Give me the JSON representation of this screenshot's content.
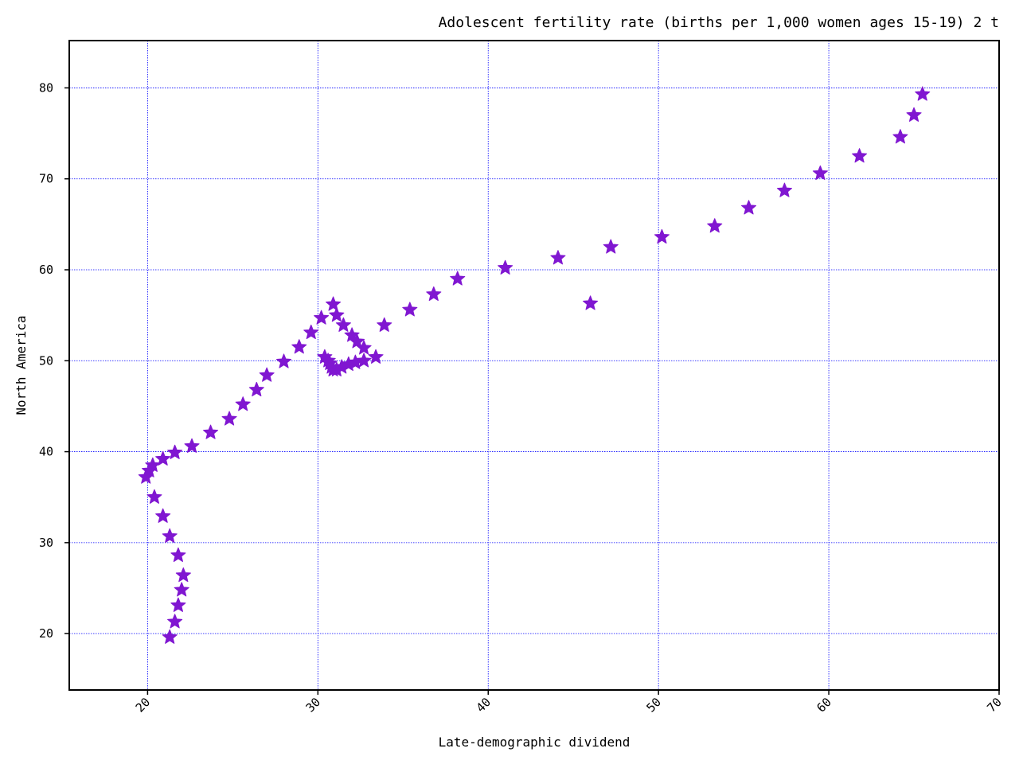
{
  "chart_data": {
    "type": "scatter",
    "title": "Adolescent fertility rate (births per 1,000 women ages 15-19) 2 t",
    "xlabel": "Late-demographic dividend",
    "ylabel": "North America",
    "xlim": [
      15.4,
      70
    ],
    "ylim": [
      13.8,
      85.2
    ],
    "x_ticks": [
      20,
      30,
      40,
      50,
      60,
      70
    ],
    "y_ticks": [
      20,
      30,
      40,
      50,
      60,
      70,
      80
    ],
    "grid": true,
    "marker": "star",
    "color": "#8017d1",
    "grid_color": "#0000ff",
    "series": [
      {
        "points": [
          [
            65.5,
            79.3
          ],
          [
            65.0,
            77.0
          ],
          [
            64.2,
            74.6
          ],
          [
            61.8,
            72.5
          ],
          [
            59.5,
            70.6
          ],
          [
            57.4,
            68.7
          ],
          [
            55.3,
            66.8
          ],
          [
            53.3,
            64.8
          ],
          [
            50.2,
            63.6
          ],
          [
            47.2,
            62.5
          ],
          [
            46.0,
            56.3
          ],
          [
            44.1,
            61.3
          ],
          [
            41.0,
            60.2
          ],
          [
            38.2,
            59.0
          ],
          [
            36.8,
            57.3
          ],
          [
            35.4,
            55.6
          ],
          [
            33.9,
            53.9
          ],
          [
            33.4,
            50.4
          ],
          [
            32.7,
            50.0
          ],
          [
            32.2,
            49.8
          ],
          [
            31.8,
            49.6
          ],
          [
            31.4,
            49.3
          ],
          [
            31.1,
            49.0
          ],
          [
            30.9,
            49.0
          ],
          [
            30.8,
            49.3
          ],
          [
            30.7,
            49.7
          ],
          [
            30.6,
            50.0
          ],
          [
            30.4,
            50.4
          ],
          [
            32.7,
            51.4
          ],
          [
            32.3,
            52.1
          ],
          [
            32.0,
            52.8
          ],
          [
            31.5,
            53.9
          ],
          [
            31.1,
            55.0
          ],
          [
            30.9,
            56.2
          ],
          [
            30.2,
            54.7
          ],
          [
            29.6,
            53.1
          ],
          [
            28.9,
            51.5
          ],
          [
            28.0,
            49.9
          ],
          [
            27.0,
            48.4
          ],
          [
            26.4,
            46.8
          ],
          [
            25.6,
            45.2
          ],
          [
            24.8,
            43.6
          ],
          [
            23.7,
            42.1
          ],
          [
            22.6,
            40.6
          ],
          [
            21.6,
            39.9
          ],
          [
            20.9,
            39.2
          ],
          [
            20.3,
            38.5
          ],
          [
            20.1,
            37.9
          ],
          [
            19.9,
            37.2
          ],
          [
            20.4,
            35.0
          ],
          [
            20.9,
            32.9
          ],
          [
            21.3,
            30.7
          ],
          [
            21.8,
            28.6
          ],
          [
            22.1,
            26.4
          ],
          [
            22.0,
            24.8
          ],
          [
            21.8,
            23.1
          ],
          [
            21.6,
            21.3
          ],
          [
            21.3,
            19.6
          ]
        ]
      }
    ]
  }
}
